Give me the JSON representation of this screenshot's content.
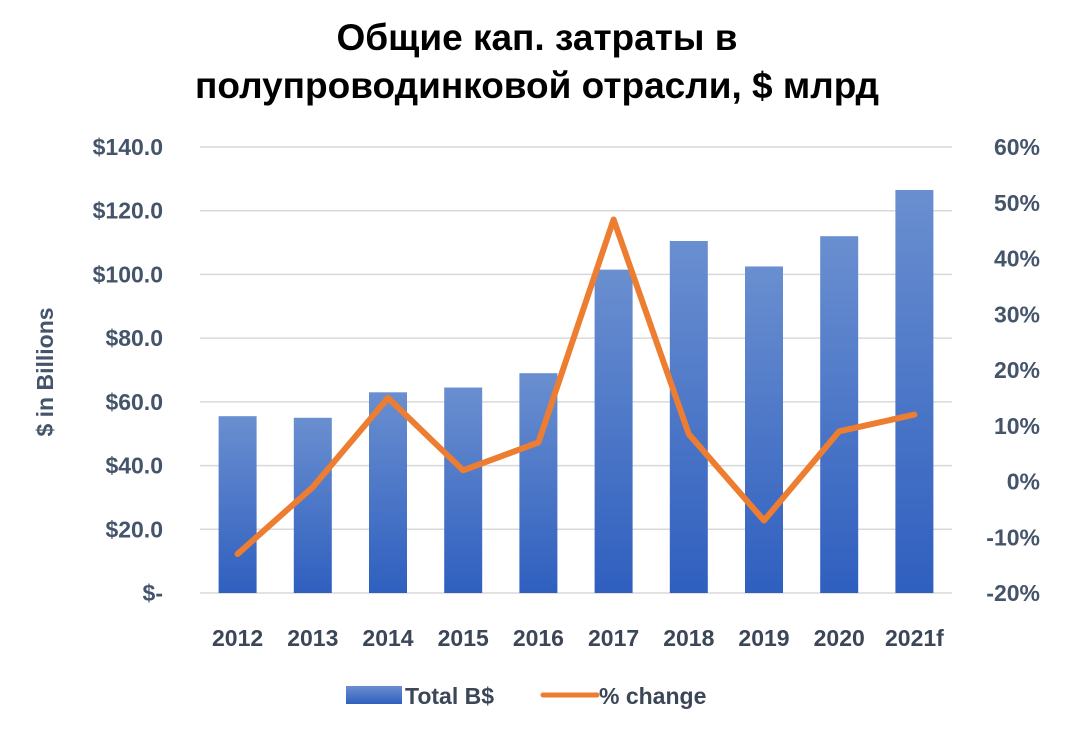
{
  "chart_data": {
    "type": "bar",
    "title_line1": "Общие кап. затраты в",
    "title_line2": "полупроводинковой отрасли, $ млрд",
    "ylabel": "$ in Billions",
    "categories": [
      "2012",
      "2013",
      "2014",
      "2015",
      "2016",
      "2017",
      "2018",
      "2019",
      "2020",
      "2021f"
    ],
    "series": [
      {
        "name": "Total B$",
        "type": "bar",
        "axis": "left",
        "color": "#4472c4",
        "values": [
          55.5,
          55.0,
          63.0,
          64.5,
          69.0,
          101.5,
          110.5,
          102.5,
          112.0,
          126.5
        ]
      },
      {
        "name": "% change",
        "type": "line",
        "axis": "right",
        "color": "#ed7d31",
        "values": [
          -13.0,
          -1.0,
          15.0,
          2.0,
          7.0,
          47.0,
          8.5,
          -7.0,
          9.0,
          12.0
        ]
      }
    ],
    "left_axis": {
      "ylim": [
        0,
        140
      ],
      "ticks": [
        0,
        20,
        40,
        60,
        80,
        100,
        120,
        140
      ],
      "tick_labels": [
        "$-",
        "$20.0",
        "$40.0",
        "$60.0",
        "$80.0",
        "$100.0",
        "$120.0",
        "$140.0"
      ]
    },
    "right_axis": {
      "ylim": [
        -20,
        60
      ],
      "ticks": [
        -20,
        -10,
        0,
        10,
        20,
        30,
        40,
        50,
        60
      ],
      "tick_labels": [
        "-20%",
        "-10%",
        "0%",
        "10%",
        "20%",
        "30%",
        "40%",
        "50%",
        "60%"
      ]
    },
    "grid": true,
    "legend_position": "bottom"
  }
}
